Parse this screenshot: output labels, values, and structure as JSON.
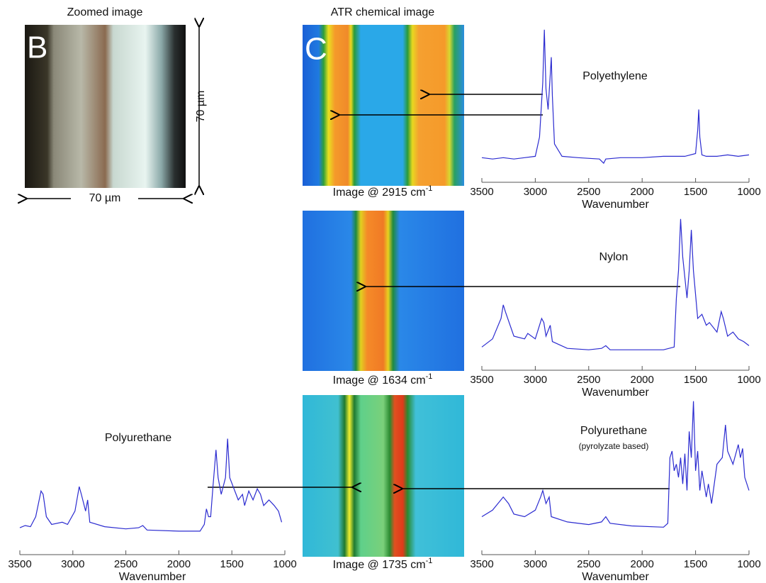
{
  "panels": {
    "zoomed": {
      "title": "Zoomed image",
      "letter": "B",
      "scale_x": "70 µm",
      "scale_y": "70 µm"
    },
    "atr": {
      "title": "ATR chemical image",
      "letter": "C",
      "images": [
        {
          "label": "Image @ 2915 cm",
          "superscript": "-1"
        },
        {
          "label": "Image @ 1634 cm",
          "superscript": "-1"
        },
        {
          "label": "Image @ 1735 cm",
          "superscript": "-1"
        }
      ]
    }
  },
  "chart_data": [
    {
      "type": "line",
      "title": "Polyethylene",
      "xlabel": "Wavenumber",
      "xlim": [
        3500,
        1000
      ],
      "xticks": [
        3500,
        3000,
        2500,
        2000,
        1500,
        1000
      ],
      "ylim": [
        0,
        100
      ],
      "color": "#2b2bd0",
      "x": [
        3500,
        3400,
        3300,
        3200,
        3100,
        3000,
        2960,
        2930,
        2915,
        2900,
        2880,
        2860,
        2850,
        2840,
        2820,
        2750,
        2600,
        2400,
        2360,
        2340,
        2200,
        2000,
        1800,
        1600,
        1500,
        1480,
        1470,
        1460,
        1440,
        1400,
        1300,
        1200,
        1100,
        1000
      ],
      "values": [
        5,
        4,
        5,
        4,
        5,
        6,
        20,
        60,
        98,
        55,
        40,
        65,
        78,
        50,
        15,
        6,
        5,
        4,
        1,
        4,
        5,
        5,
        6,
        6,
        8,
        25,
        40,
        20,
        7,
        6,
        6,
        7,
        6,
        7
      ]
    },
    {
      "type": "line",
      "title": "Nylon",
      "xlabel": "Wavenumber",
      "xlim": [
        3500,
        1000
      ],
      "xticks": [
        3500,
        3000,
        2500,
        2000,
        1500,
        1000
      ],
      "ylim": [
        0,
        100
      ],
      "color": "#2b2bd0",
      "x": [
        3500,
        3400,
        3320,
        3300,
        3280,
        3200,
        3100,
        3070,
        3000,
        2940,
        2920,
        2900,
        2860,
        2840,
        2700,
        2500,
        2380,
        2340,
        2300,
        2000,
        1800,
        1700,
        1680,
        1660,
        1640,
        1620,
        1580,
        1560,
        1540,
        1520,
        1480,
        1440,
        1400,
        1370,
        1300,
        1260,
        1240,
        1200,
        1150,
        1100,
        1050,
        1000
      ],
      "values": [
        4,
        10,
        25,
        35,
        30,
        12,
        10,
        14,
        10,
        25,
        22,
        12,
        20,
        8,
        3,
        2,
        3,
        5,
        2,
        2,
        2,
        4,
        40,
        60,
        98,
        70,
        40,
        60,
        90,
        60,
        25,
        28,
        20,
        22,
        15,
        30,
        25,
        12,
        15,
        10,
        8,
        5
      ]
    },
    {
      "type": "line",
      "title": "Polyurethane",
      "subtitle": "(pyrolyzate based)",
      "xlabel": "Wavenumber",
      "xlim": [
        3500,
        1000
      ],
      "xticks": [
        3500,
        3000,
        2500,
        2000,
        1500,
        1000
      ],
      "ylim": [
        0,
        100
      ],
      "color": "#2b2bd0",
      "x": [
        3500,
        3400,
        3300,
        3250,
        3200,
        3100,
        3000,
        2950,
        2930,
        2900,
        2870,
        2850,
        2700,
        2500,
        2380,
        2340,
        2300,
        2100,
        1800,
        1760,
        1740,
        1720,
        1700,
        1680,
        1660,
        1640,
        1620,
        1600,
        1580,
        1560,
        1540,
        1520,
        1500,
        1480,
        1460,
        1440,
        1400,
        1380,
        1350,
        1300,
        1250,
        1220,
        1200,
        1150,
        1100,
        1080,
        1060,
        1040,
        1000
      ],
      "values": [
        10,
        15,
        25,
        20,
        12,
        10,
        15,
        25,
        30,
        20,
        25,
        10,
        6,
        4,
        6,
        10,
        5,
        3,
        2,
        5,
        55,
        60,
        45,
        50,
        40,
        55,
        35,
        58,
        30,
        75,
        55,
        98,
        45,
        60,
        30,
        45,
        25,
        35,
        20,
        50,
        55,
        80,
        60,
        50,
        65,
        55,
        62,
        40,
        30
      ]
    },
    {
      "type": "line",
      "title": "Polyurethane",
      "xlabel": "Wavenumber",
      "xlim": [
        3500,
        1000
      ],
      "xticks": [
        3500,
        3000,
        2500,
        2000,
        1500,
        1000
      ],
      "ylim": [
        0,
        100
      ],
      "color": "#2b2bd0",
      "x": [
        3500,
        3450,
        3400,
        3350,
        3300,
        3280,
        3250,
        3200,
        3100,
        3050,
        2980,
        2940,
        2920,
        2880,
        2860,
        2840,
        2700,
        2500,
        2380,
        2340,
        2300,
        2000,
        1800,
        1760,
        1740,
        1720,
        1700,
        1680,
        1650,
        1630,
        1600,
        1560,
        1540,
        1520,
        1480,
        1460,
        1440,
        1400,
        1380,
        1340,
        1300,
        1260,
        1230,
        1200,
        1150,
        1100,
        1060,
        1030
      ],
      "values": [
        5,
        7,
        6,
        15,
        38,
        35,
        15,
        8,
        10,
        8,
        20,
        42,
        35,
        20,
        30,
        10,
        6,
        4,
        5,
        7,
        3,
        2,
        2,
        8,
        22,
        15,
        15,
        40,
        75,
        50,
        35,
        50,
        85,
        50,
        40,
        35,
        30,
        35,
        25,
        38,
        30,
        40,
        35,
        25,
        30,
        25,
        20,
        10
      ]
    }
  ]
}
